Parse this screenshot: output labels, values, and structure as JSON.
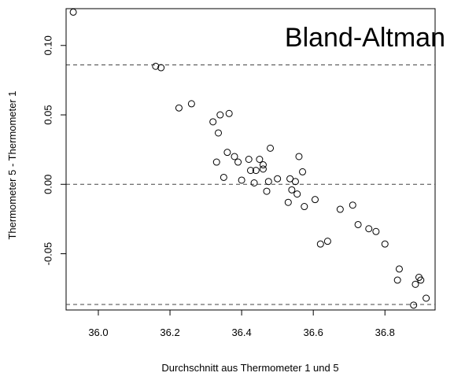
{
  "chart_data": {
    "type": "scatter",
    "title": "Bland-Altman",
    "xlabel": "Durchschnitt aus Thermometer 1 und 5",
    "ylabel": "Thermometer 5 - Thermometer 1",
    "xlim": [
      35.91,
      36.94
    ],
    "ylim": [
      -0.0905,
      0.1265
    ],
    "xticks": [
      36.0,
      36.2,
      36.4,
      36.6,
      36.8
    ],
    "xtick_labels": [
      "36.0",
      "36.2",
      "36.4",
      "36.6",
      "36.8"
    ],
    "yticks": [
      -0.05,
      0.0,
      0.05,
      0.1
    ],
    "ytick_labels": [
      "-0.05",
      "0.00",
      "0.05",
      "0.10"
    ],
    "reference_lines": [
      0.086,
      0.0,
      -0.0865
    ],
    "grid": false,
    "marker": "open-circle",
    "series": [
      {
        "points": [
          {
            "x": 35.93,
            "y": 0.124
          },
          {
            "x": 36.16,
            "y": 0.085
          },
          {
            "x": 36.175,
            "y": 0.084
          },
          {
            "x": 36.225,
            "y": 0.055
          },
          {
            "x": 36.26,
            "y": 0.058
          },
          {
            "x": 36.32,
            "y": 0.045
          },
          {
            "x": 36.34,
            "y": 0.05
          },
          {
            "x": 36.365,
            "y": 0.051
          },
          {
            "x": 36.335,
            "y": 0.037
          },
          {
            "x": 36.33,
            "y": 0.016
          },
          {
            "x": 36.36,
            "y": 0.023
          },
          {
            "x": 36.35,
            "y": 0.005
          },
          {
            "x": 36.38,
            "y": 0.02
          },
          {
            "x": 36.39,
            "y": 0.016
          },
          {
            "x": 36.4,
            "y": 0.003
          },
          {
            "x": 36.42,
            "y": 0.018
          },
          {
            "x": 36.425,
            "y": 0.01
          },
          {
            "x": 36.44,
            "y": 0.01
          },
          {
            "x": 36.435,
            "y": 0.001
          },
          {
            "x": 36.45,
            "y": 0.018
          },
          {
            "x": 36.46,
            "y": 0.014
          },
          {
            "x": 36.46,
            "y": 0.011
          },
          {
            "x": 36.47,
            "y": -0.005
          },
          {
            "x": 36.475,
            "y": 0.002
          },
          {
            "x": 36.48,
            "y": 0.026
          },
          {
            "x": 36.5,
            "y": 0.004
          },
          {
            "x": 36.53,
            "y": -0.013
          },
          {
            "x": 36.535,
            "y": 0.004
          },
          {
            "x": 36.54,
            "y": -0.004
          },
          {
            "x": 36.55,
            "y": 0.002
          },
          {
            "x": 36.555,
            "y": -0.007
          },
          {
            "x": 36.56,
            "y": 0.02
          },
          {
            "x": 36.57,
            "y": 0.009
          },
          {
            "x": 36.575,
            "y": -0.016
          },
          {
            "x": 36.605,
            "y": -0.011
          },
          {
            "x": 36.62,
            "y": -0.043
          },
          {
            "x": 36.64,
            "y": -0.041
          },
          {
            "x": 36.675,
            "y": -0.018
          },
          {
            "x": 36.71,
            "y": -0.015
          },
          {
            "x": 36.725,
            "y": -0.029
          },
          {
            "x": 36.755,
            "y": -0.032
          },
          {
            "x": 36.775,
            "y": -0.034
          },
          {
            "x": 36.8,
            "y": -0.043
          },
          {
            "x": 36.835,
            "y": -0.069
          },
          {
            "x": 36.84,
            "y": -0.061
          },
          {
            "x": 36.88,
            "y": -0.087
          },
          {
            "x": 36.885,
            "y": -0.072
          },
          {
            "x": 36.895,
            "y": -0.067
          },
          {
            "x": 36.9,
            "y": -0.069
          },
          {
            "x": 36.915,
            "y": -0.082
          }
        ]
      }
    ]
  }
}
